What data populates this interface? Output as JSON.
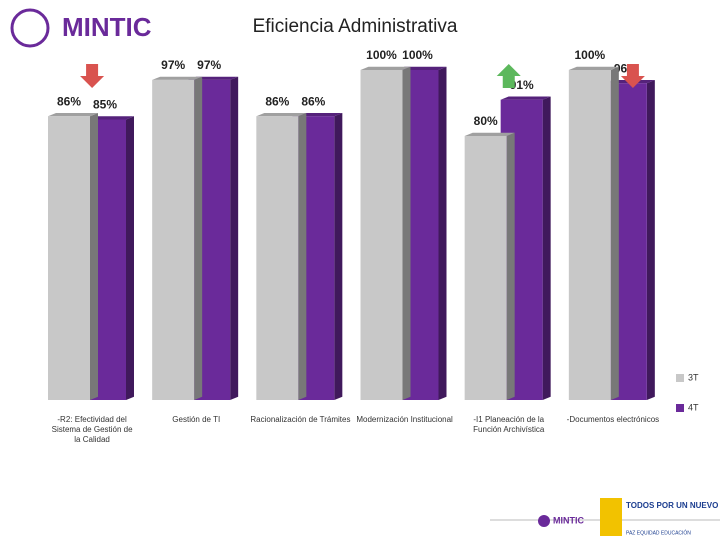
{
  "chart_data": {
    "type": "bar3d",
    "title": "Eficiencia Administrativa",
    "categories": [
      "-R2: Efectividad del Sistema de Gestión de la Calidad",
      "Gestión de TI",
      "Racionalización de Trámites",
      "Modernización Institucional",
      "-I1 Planeación de la Función Archivística",
      "-Documentos electrónicos"
    ],
    "series": [
      {
        "name": "3T",
        "color": "#c8c8c8",
        "values": [
          86,
          97,
          86,
          100,
          80,
          100
        ]
      },
      {
        "name": "4T",
        "color": "#6a2a9a",
        "values": [
          85,
          97,
          86,
          100,
          91,
          96
        ]
      }
    ],
    "ylim": [
      0,
      100
    ],
    "legend": "right"
  },
  "header": {
    "logo": "MINTIC"
  },
  "footer": {
    "logo": "MINTIC",
    "slogan": "TODOS POR UN NUEVO PAÍS",
    "motto": "PAZ  EQUIDAD  EDUCACIÓN"
  }
}
